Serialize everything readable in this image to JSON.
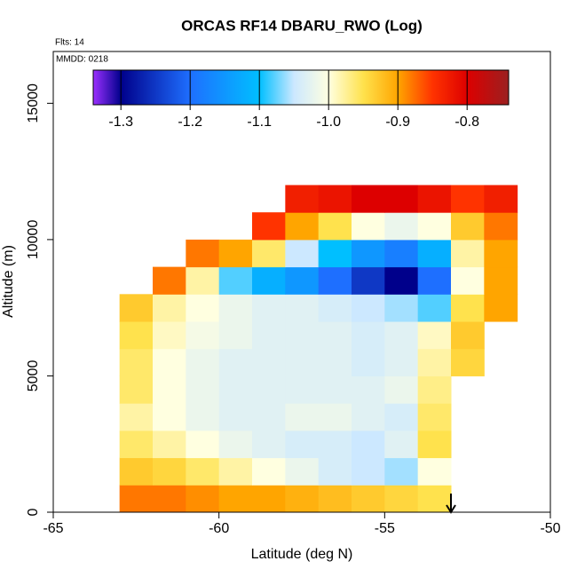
{
  "chart_data": {
    "type": "heatmap",
    "title": "ORCAS RF14 DBARU_RWO (Log)",
    "subtitle": "Flts: 14",
    "annotation": "MMDD: 0218",
    "xlabel": "Latitude (deg N)",
    "ylabel": "Altitude (m)",
    "xlim": [
      -65,
      -50
    ],
    "xticks": [
      -65,
      -60,
      -55,
      -50
    ],
    "ylim": [
      0,
      16900
    ],
    "yticks": [
      0,
      5000,
      10000,
      15000
    ],
    "x": [
      -62.5,
      -61.5,
      -60.5,
      -59.5,
      -58.5,
      -57.5,
      -56.5,
      -55.5,
      -54.5,
      -53.5,
      -52.5,
      -51.5
    ],
    "y": [
      500,
      1500,
      2500,
      3500,
      4500,
      5500,
      6500,
      7500,
      8500,
      9500,
      10500,
      11500
    ],
    "z": [
      [
        -0.88,
        -0.88,
        -0.89,
        -0.9,
        -0.9,
        -0.91,
        -0.92,
        -0.93,
        -0.94,
        -0.95,
        null,
        null
      ],
      [
        -0.93,
        -0.94,
        -0.96,
        -0.98,
        -1.0,
        -1.02,
        -1.04,
        -1.05,
        -1.06,
        -1.0,
        null,
        null
      ],
      [
        -0.96,
        -0.98,
        -1.0,
        -1.02,
        -1.03,
        -1.04,
        -1.04,
        -1.05,
        -1.03,
        -0.95,
        null,
        null
      ],
      [
        -0.98,
        -1.0,
        -1.02,
        -1.03,
        -1.03,
        -1.02,
        -1.02,
        -1.03,
        -1.04,
        -0.96,
        null,
        null
      ],
      [
        -0.96,
        -1.0,
        -1.02,
        -1.03,
        -1.03,
        -1.03,
        -1.03,
        -1.03,
        -1.02,
        -0.97,
        null,
        null
      ],
      [
        -0.96,
        -1.0,
        -1.02,
        -1.03,
        -1.03,
        -1.03,
        -1.03,
        -1.04,
        -1.03,
        -0.98,
        -0.94,
        null
      ],
      [
        -0.95,
        -0.99,
        -1.01,
        -1.02,
        -1.03,
        -1.03,
        -1.03,
        -1.04,
        -1.03,
        -0.99,
        -0.93,
        null
      ],
      [
        -0.93,
        -0.98,
        -1.0,
        -1.02,
        -1.03,
        -1.03,
        -1.04,
        -1.05,
        -1.06,
        -1.08,
        -0.95,
        -0.9
      ],
      [
        null,
        -0.88,
        -0.98,
        -1.08,
        -1.12,
        -1.15,
        -1.2,
        -1.25,
        -1.3,
        -1.2,
        -1.0,
        -0.9
      ],
      [
        null,
        null,
        -0.88,
        -0.9,
        -0.96,
        -1.05,
        -1.1,
        -1.15,
        -1.18,
        -1.12,
        -0.98,
        -0.9
      ],
      [
        null,
        null,
        null,
        null,
        -0.85,
        -0.9,
        -0.95,
        -1.0,
        -1.02,
        -1.0,
        -0.93,
        -0.88
      ],
      [
        null,
        null,
        null,
        null,
        null,
        -0.83,
        -0.82,
        -0.8,
        -0.8,
        -0.82,
        -0.85,
        -0.83
      ]
    ],
    "colorbar_lim": [
      -1.34,
      -0.74
    ],
    "colorbar_ticks": [
      -1.3,
      -1.2,
      -1.1,
      {
        "value": -1.0,
        "label": "-1.0"
      },
      -0.9,
      -0.8
    ],
    "colorscale": [
      {
        "value": -1.34,
        "color": "#9b30ff"
      },
      {
        "value": -1.3,
        "color": "#00008b"
      },
      {
        "value": -1.2,
        "color": "#1e6fff"
      },
      {
        "value": -1.1,
        "color": "#00bfff"
      },
      {
        "value": -1.05,
        "color": "#cce8ff"
      },
      {
        "value": -1.0,
        "color": "#ffffe0"
      },
      {
        "value": -0.95,
        "color": "#ffe24d"
      },
      {
        "value": -0.9,
        "color": "#ffa500"
      },
      {
        "value": -0.85,
        "color": "#ff3300"
      },
      {
        "value": -0.8,
        "color": "#dd0000"
      },
      {
        "value": -0.74,
        "color": "#9b2020"
      }
    ],
    "arrow_x": -53
  }
}
